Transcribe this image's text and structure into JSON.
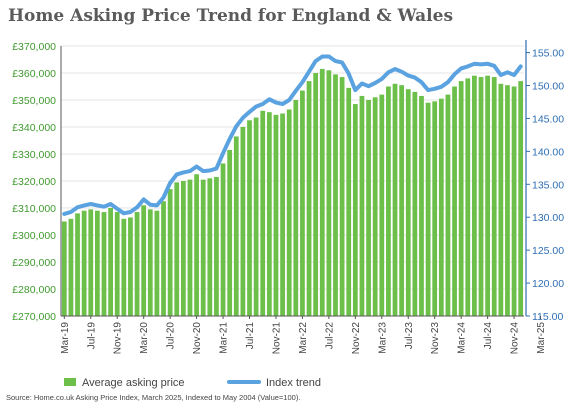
{
  "chart_data": {
    "type": "bar",
    "title": "Home Asking Price Trend for England & Wales",
    "source": "Source: Home.co.uk Asking Price Index, March 2025, Indexed to May 2004 (Value=100).",
    "x_tick_labels": [
      "Mar-19",
      "Jul-19",
      "Nov-19",
      "Mar-20",
      "Jul-20",
      "Nov-20",
      "Mar-21",
      "Jul-21",
      "Nov-21",
      "Mar-22",
      "Jul-22",
      "Nov-22",
      "Mar-23",
      "Jul-23",
      "Nov-23",
      "Mar-24",
      "Jul-24",
      "Nov-24",
      "Mar-25"
    ],
    "y_left": {
      "ticks": [
        "£270,000",
        "£280,000",
        "£290,000",
        "£300,000",
        "£310,000",
        "£320,000",
        "£330,000",
        "£340,000",
        "£350,000",
        "£360,000",
        "£370,000"
      ],
      "ylim": [
        270000,
        370000
      ]
    },
    "y_right": {
      "ticks": [
        "115.00",
        "120.00",
        "125.00",
        "130.00",
        "135.00",
        "140.00",
        "145.00",
        "150.00",
        "155.00"
      ],
      "ylim": [
        115,
        156
      ]
    },
    "series": [
      {
        "name": "Average asking price",
        "type": "bar",
        "axis": "left",
        "color": "#6cc04a",
        "values": [
          305000,
          306000,
          308000,
          309000,
          309500,
          309000,
          308500,
          310000,
          308500,
          306000,
          306500,
          308500,
          311000,
          309500,
          309000,
          312500,
          317000,
          319500,
          320000,
          320500,
          322500,
          320500,
          321000,
          321500,
          326500,
          331500,
          336500,
          340000,
          342500,
          343500,
          346000,
          345500,
          344500,
          345000,
          346500,
          350000,
          353500,
          357000,
          360000,
          361500,
          361000,
          359500,
          358500,
          354500,
          348500,
          351500,
          350000,
          351000,
          352000,
          355000,
          356000,
          355500,
          354000,
          353000,
          351500,
          349000,
          349500,
          350500,
          352000,
          355000,
          357000,
          358000,
          359000,
          358500,
          359000,
          358500,
          356000,
          355500,
          355000,
          357000
        ]
      },
      {
        "name": "Index trend",
        "type": "line",
        "axis": "right",
        "color": "#5aa2e0",
        "values": [
          130.5,
          130.8,
          131.5,
          131.8,
          132.0,
          131.8,
          131.6,
          132.0,
          131.3,
          130.6,
          130.8,
          131.5,
          132.7,
          131.9,
          131.8,
          133.0,
          135.2,
          136.5,
          136.8,
          137.0,
          137.7,
          137.0,
          137.1,
          137.4,
          139.7,
          141.9,
          143.8,
          145.1,
          146.0,
          146.8,
          147.2,
          147.9,
          147.4,
          147.2,
          147.8,
          149.2,
          150.5,
          152.1,
          153.7,
          154.4,
          154.4,
          153.7,
          153.5,
          151.8,
          149.3,
          150.3,
          149.9,
          150.4,
          151.0,
          152.0,
          152.5,
          152.1,
          151.5,
          151.2,
          150.5,
          149.3,
          149.5,
          149.8,
          150.5,
          151.7,
          152.6,
          152.9,
          153.3,
          153.2,
          153.3,
          153.0,
          151.6,
          152.0,
          151.6,
          152.9
        ]
      }
    ],
    "legend": {
      "position": "bottom"
    }
  }
}
